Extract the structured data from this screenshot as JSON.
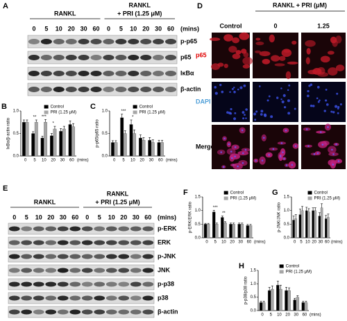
{
  "blot_A": {
    "label": "A",
    "groups": [
      {
        "lines": [
          "RANKL"
        ]
      },
      {
        "lines": [
          "RANKL",
          "+ PRI (1.25 μM)"
        ]
      }
    ],
    "times": [
      "0",
      "5",
      "10",
      "20",
      "30",
      "60",
      "0",
      "5",
      "10",
      "20",
      "30",
      "60"
    ],
    "unit": "(mins)",
    "rows": [
      "p-p65",
      "p65",
      "IκBα",
      "β-actin"
    ]
  },
  "panel_D": {
    "label": "D",
    "header": "RANKL + PRI (μM)",
    "columns": [
      "Control",
      "0",
      "1.25"
    ],
    "rows": [
      "p65",
      "DAPI",
      "Merge"
    ]
  },
  "blot_E": {
    "label": "E",
    "groups": [
      {
        "lines": [
          "RANKL"
        ]
      },
      {
        "lines": [
          "RANKL",
          "+ PRI (1.25 μM)"
        ]
      }
    ],
    "times": [
      "0",
      "5",
      "10",
      "20",
      "30",
      "60",
      "0",
      "5",
      "10",
      "20",
      "30",
      "60"
    ],
    "unit": "(mins)",
    "rows": [
      "p-ERK",
      "ERK",
      "p-JNK",
      "JNK",
      "p-p38",
      "p38",
      "β-actin"
    ]
  },
  "chart_data": [
    {
      "type": "bar",
      "label": "B",
      "y_label": "IκBα/β-actin ratio",
      "x_label": "(mins)",
      "categories": [
        "0",
        "5",
        "10",
        "20",
        "30",
        "60"
      ],
      "series": [
        {
          "name": "Control",
          "color": "#000000",
          "values": [
            0.75,
            0.5,
            0.4,
            0.45,
            0.55,
            0.7
          ],
          "errors": [
            0.05,
            0.04,
            0.04,
            0.05,
            0.06,
            0.08
          ]
        },
        {
          "name": "PRI (1.25 μM)",
          "color": "#a6a6a6",
          "values": [
            0.75,
            0.75,
            0.75,
            0.6,
            0.6,
            0.65
          ],
          "errors": [
            0.05,
            0.05,
            0.06,
            0.06,
            0.06,
            0.07
          ]
        }
      ],
      "annotations": [
        {
          "text": "**",
          "x": "5"
        },
        {
          "text": "***",
          "x": "10"
        },
        {
          "text": "*",
          "x": "20"
        }
      ],
      "ylim": [
        0,
        1.0
      ],
      "yticks": [
        {
          "value": 0,
          "label": "0.0"
        },
        {
          "value": 0.5,
          "label": "0.5"
        },
        {
          "value": 1.0,
          "label": "1.0"
        }
      ]
    },
    {
      "type": "bar",
      "label": "C",
      "y_label": "p-p65/p65 ratio",
      "x_label": "(mins)",
      "categories": [
        "0",
        "5",
        "10",
        "20",
        "30",
        "60"
      ],
      "series": [
        {
          "name": "Control",
          "color": "#000000",
          "values": [
            0.3,
            0.85,
            0.7,
            0.4,
            0.35,
            0.3
          ],
          "errors": [
            0.04,
            0.08,
            0.1,
            0.07,
            0.06,
            0.05
          ]
        },
        {
          "name": "PRI (1.25 μM)",
          "color": "#a6a6a6",
          "values": [
            0.3,
            0.5,
            0.5,
            0.35,
            0.3,
            0.3
          ],
          "errors": [
            0.04,
            0.06,
            0.08,
            0.06,
            0.06,
            0.05
          ]
        }
      ],
      "annotations": [
        {
          "text": "***",
          "x": "5"
        },
        {
          "text": "*",
          "x": "10"
        }
      ],
      "ylim": [
        0,
        1.0
      ],
      "yticks": [
        {
          "value": 0,
          "label": "0.0"
        },
        {
          "value": 0.5,
          "label": "0.5"
        },
        {
          "value": 1.0,
          "label": "1.0"
        }
      ]
    },
    {
      "type": "bar",
      "label": "F",
      "y_label": "p-ERK/ERK ratio",
      "x_label": "(mins)",
      "categories": [
        "0",
        "5",
        "10",
        "20",
        "30",
        "60"
      ],
      "series": [
        {
          "name": "Control",
          "color": "#000000",
          "values": [
            0.5,
            0.95,
            0.75,
            0.5,
            0.5,
            0.45
          ],
          "errors": [
            0.03,
            0.06,
            0.05,
            0.04,
            0.04,
            0.04
          ]
        },
        {
          "name": "PRI (1.25 μM)",
          "color": "#a6a6a6",
          "values": [
            0.5,
            0.5,
            0.55,
            0.5,
            0.5,
            0.45
          ],
          "errors": [
            0.03,
            0.04,
            0.04,
            0.04,
            0.04,
            0.04
          ]
        }
      ],
      "annotations": [
        {
          "text": "***",
          "x": "5"
        },
        {
          "text": "**",
          "x": "10"
        }
      ],
      "ylim": [
        0,
        1.5
      ],
      "yticks": [
        {
          "value": 0,
          "label": "0.0"
        },
        {
          "value": 0.5,
          "label": "0.5"
        },
        {
          "value": 1.0,
          "label": "1.0"
        },
        {
          "value": 1.5,
          "label": "1.5"
        }
      ]
    },
    {
      "type": "bar",
      "label": "G",
      "y_label": "p-JNK/JNK ratio",
      "x_label": "(mins)",
      "categories": [
        "0",
        "5",
        "10",
        "20",
        "30",
        "60"
      ],
      "series": [
        {
          "name": "Control",
          "color": "#000000",
          "values": [
            0.65,
            0.85,
            1.0,
            1.0,
            0.8,
            0.7
          ],
          "errors": [
            0.15,
            0.2,
            0.12,
            0.1,
            0.12,
            0.12
          ]
        },
        {
          "name": "PRI (1.25 μM)",
          "color": "#a6a6a6",
          "values": [
            0.7,
            1.0,
            0.95,
            1.0,
            1.1,
            0.75
          ],
          "errors": [
            0.15,
            0.15,
            0.12,
            0.1,
            0.15,
            0.12
          ]
        }
      ],
      "ylim": [
        0,
        1.5
      ],
      "yticks": [
        {
          "value": 0,
          "label": "0.0"
        },
        {
          "value": 0.5,
          "label": "0.5"
        },
        {
          "value": 1.0,
          "label": "1.0"
        },
        {
          "value": 1.5,
          "label": "1.5"
        }
      ]
    },
    {
      "type": "bar",
      "label": "H",
      "y_label": "p-p38/p38 ratio",
      "x_label": "(mins)",
      "categories": [
        "0",
        "5",
        "10",
        "20",
        "30",
        "60"
      ],
      "series": [
        {
          "name": "Control",
          "color": "#000000",
          "values": [
            0.3,
            0.75,
            0.95,
            0.75,
            0.4,
            0.3
          ],
          "errors": [
            0.05,
            0.12,
            0.15,
            0.12,
            0.06,
            0.05
          ]
        },
        {
          "name": "PRI (1.25 μM)",
          "color": "#a6a6a6",
          "values": [
            0.3,
            0.8,
            0.8,
            0.75,
            0.5,
            0.3
          ],
          "errors": [
            0.05,
            0.12,
            0.15,
            0.1,
            0.06,
            0.05
          ]
        }
      ],
      "ylim": [
        0,
        1.5
      ],
      "yticks": [
        {
          "value": 0,
          "label": "0.0"
        },
        {
          "value": 0.5,
          "label": "0.5"
        },
        {
          "value": 1.0,
          "label": "1.0"
        },
        {
          "value": 1.5,
          "label": "1.5"
        }
      ]
    }
  ]
}
